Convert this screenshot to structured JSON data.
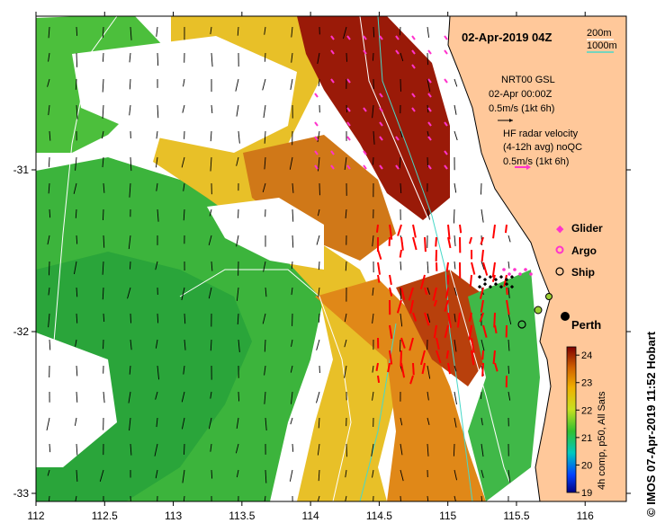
{
  "title": "02-Apr-2019 04Z",
  "isobath_legend": [
    "200m",
    "1000m"
  ],
  "vector_legend": {
    "gsl_title": "NRT00 GSL",
    "gsl_time": "02-Apr 00:00Z",
    "gsl_scale": "0.5m/s (1kt 6h)",
    "hf_title": "HF radar velocity",
    "hf_subtitle": "(4-12h avg) noQC",
    "hf_scale": "0.5m/s (1kt 6h)"
  },
  "platform_legend": [
    "Glider",
    "Argo",
    "Ship"
  ],
  "place_label": "Perth",
  "x_axis": {
    "ticks": [
      "112",
      "112.5",
      "113",
      "113.5",
      "114",
      "114.5",
      "115",
      "115.5",
      "116"
    ],
    "range": [
      112,
      116.3
    ]
  },
  "y_axis": {
    "ticks": [
      "-31",
      "-32",
      "-33"
    ],
    "range": [
      -33.05,
      -30.05
    ]
  },
  "colorbar": {
    "ticks": [
      "24",
      "23",
      "22",
      "21",
      "20",
      "19"
    ],
    "range": [
      19,
      24.3
    ],
    "label": "4h comp, p50, All Sats"
  },
  "credit": "© IMOS 07-Apr-2019 11:52 Hobart",
  "colors": {
    "land": "#ffc89a",
    "isobath_200": "#ffffff",
    "isobath_1000": "#48d8c8",
    "glider": "#ff33cc",
    "hf_vector": "#ff0000"
  }
}
